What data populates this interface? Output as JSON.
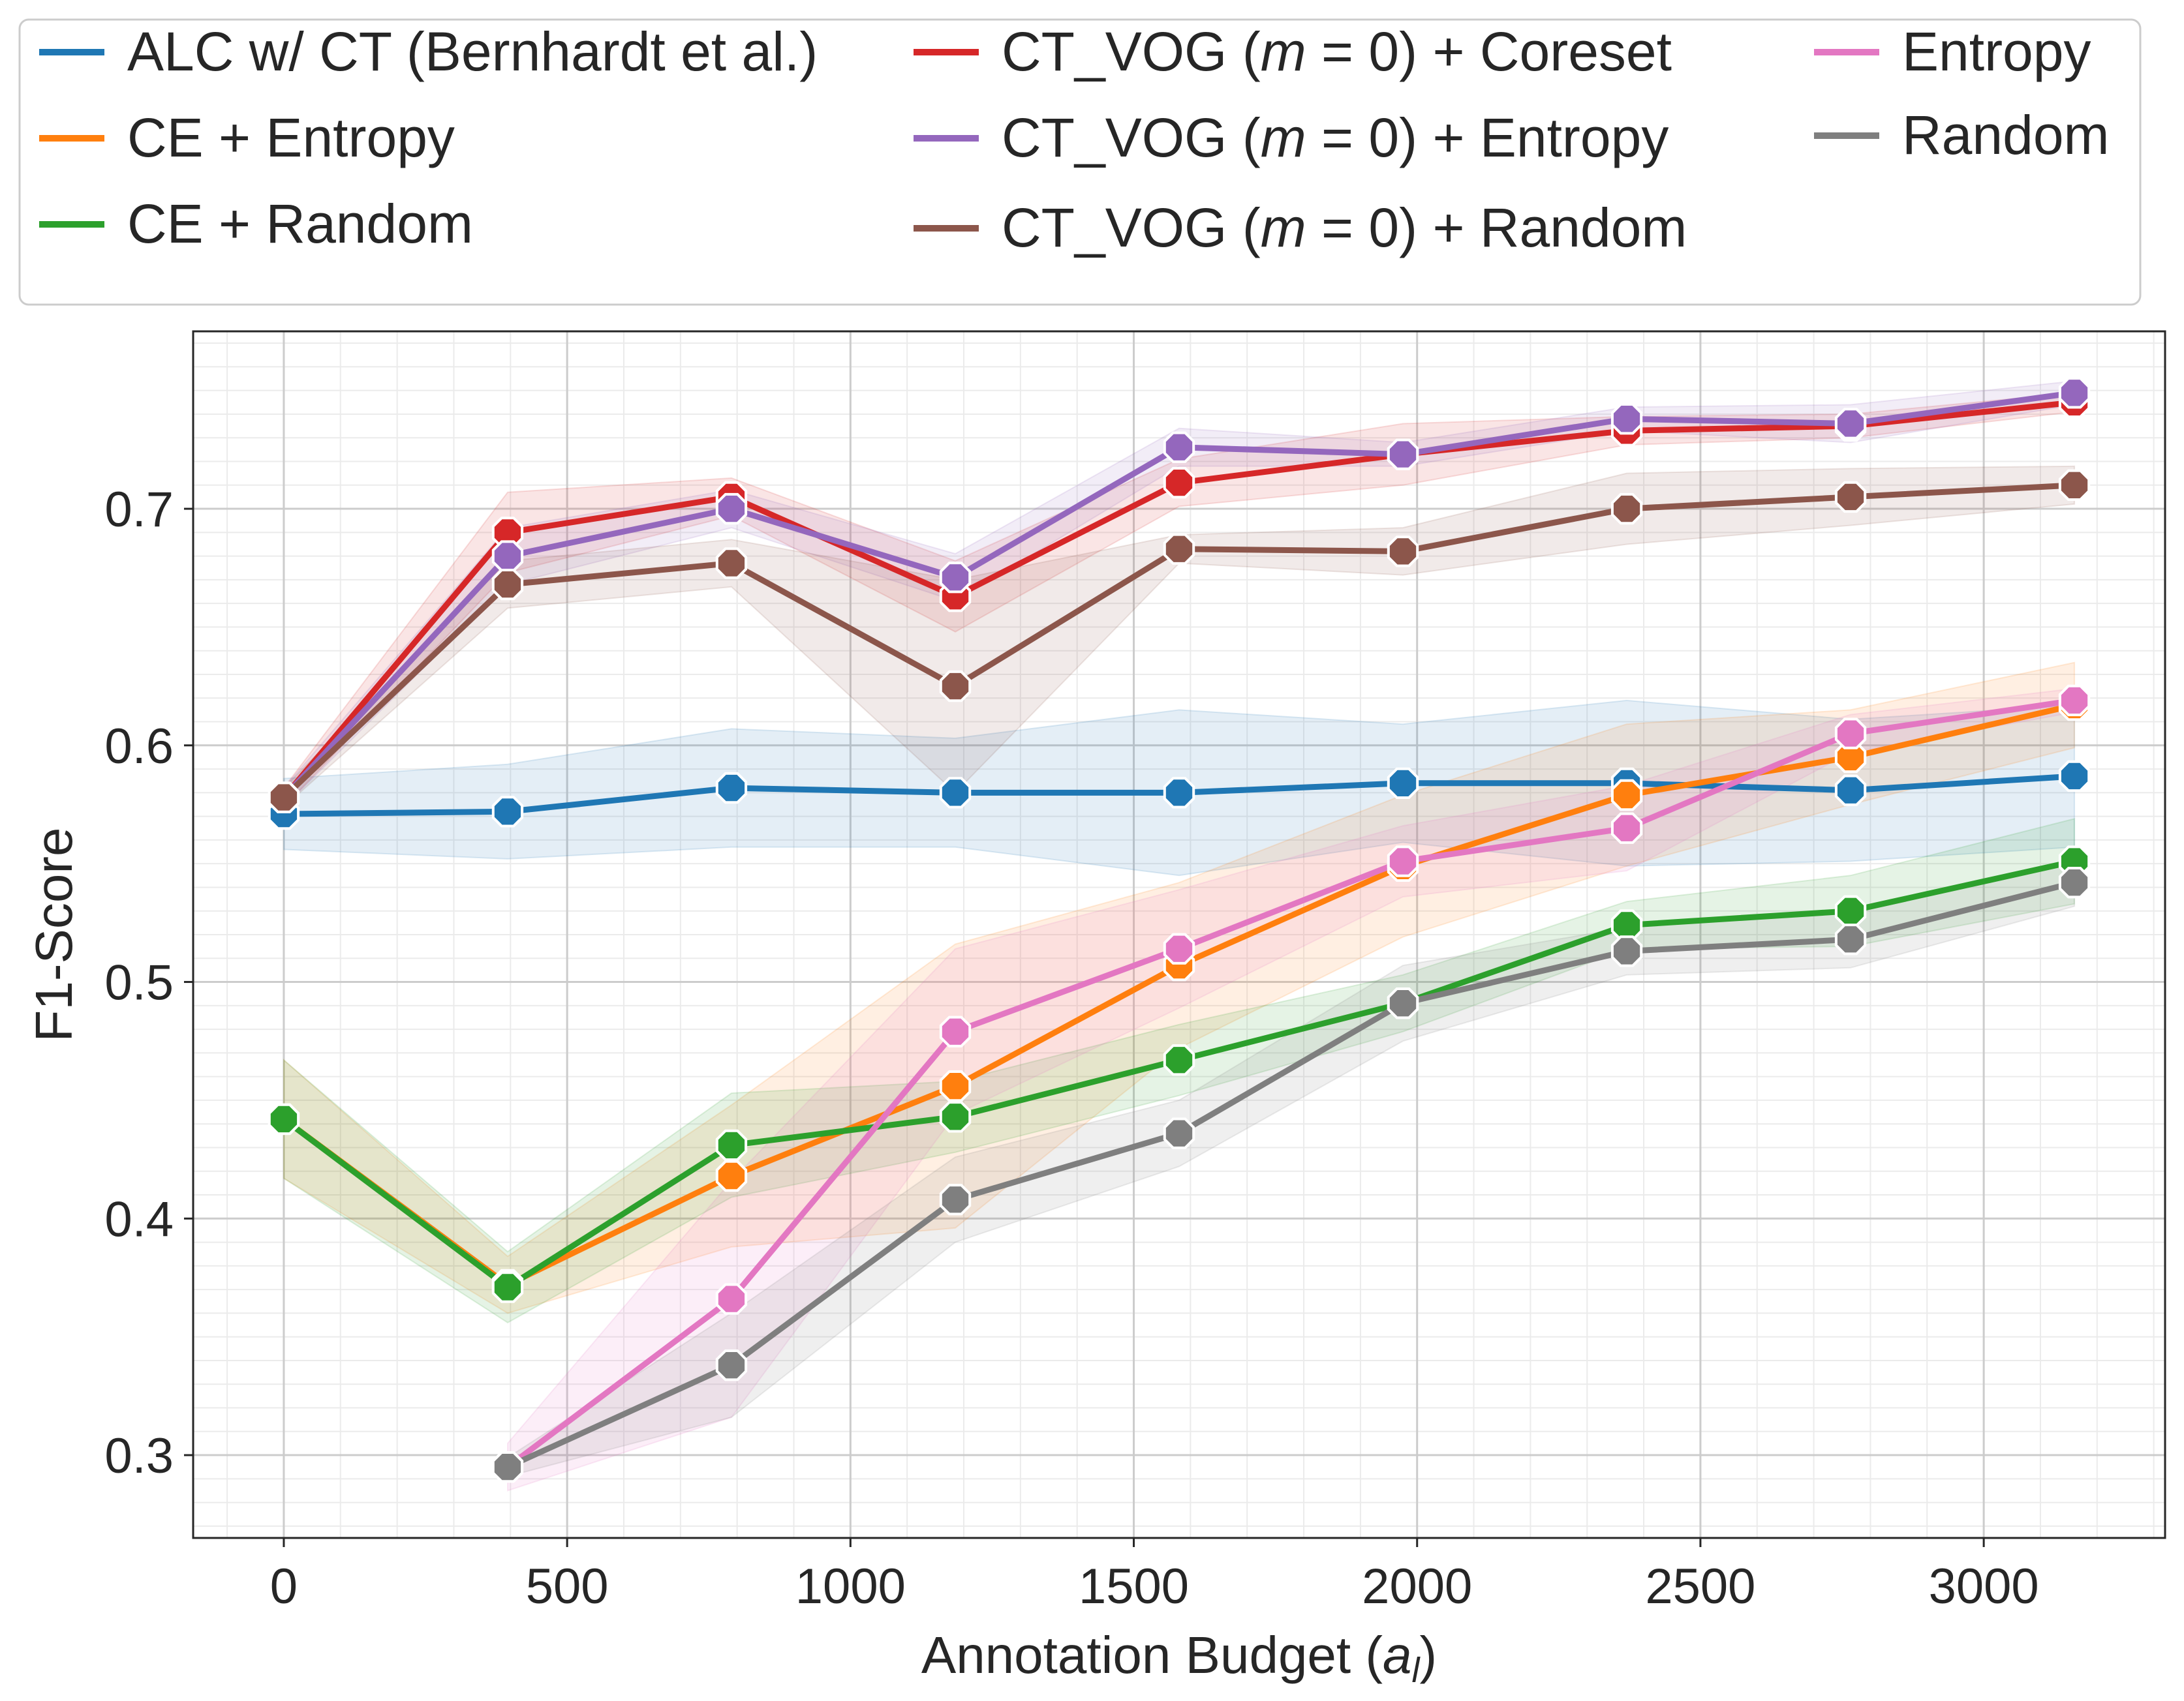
{
  "chart_data": {
    "type": "line",
    "title": "",
    "xlabel_text": "Annotation Budget (",
    "xlabel_var": "a",
    "xlabel_sub": "l",
    "xlabel_close": ")",
    "ylabel": "F1-Score",
    "xlim": [
      -160,
      3320
    ],
    "ylim": [
      0.265,
      0.775
    ],
    "xticks": [
      0,
      500,
      1000,
      1500,
      2000,
      2500,
      3000
    ],
    "yticks": [
      0.3,
      0.4,
      0.5,
      0.6,
      0.7
    ],
    "ytick_labels": [
      "0.3",
      "0.4",
      "0.5",
      "0.6",
      "0.7"
    ],
    "grid": true,
    "legend_placement": "top, outside the plot, 3 columns",
    "series": [
      {
        "name": "ALC w/ CT (Bernhardt et al.)",
        "color": "#1f77b4",
        "x": [
          0,
          395,
          790,
          1185,
          1580,
          1975,
          2370,
          2765,
          3160
        ],
        "y": [
          0.571,
          0.572,
          0.582,
          0.58,
          0.58,
          0.584,
          0.584,
          0.581,
          0.587
        ],
        "err": [
          0.015,
          0.02,
          0.025,
          0.023,
          0.035,
          0.025,
          0.035,
          0.03,
          0.03
        ]
      },
      {
        "name": "CE + Entropy",
        "color": "#ff7f0e",
        "x": [
          0,
          395,
          790,
          1185,
          1580,
          1975,
          2370,
          2765,
          3160
        ],
        "y": [
          0.442,
          0.372,
          0.418,
          0.456,
          0.507,
          0.549,
          0.579,
          0.595,
          0.617
        ],
        "err": [
          0.025,
          0.012,
          0.03,
          0.06,
          0.035,
          0.03,
          0.03,
          0.02,
          0.018
        ]
      },
      {
        "name": "CE + Random",
        "color": "#2ca02c",
        "x": [
          0,
          395,
          790,
          1185,
          1580,
          1975,
          2370,
          2765,
          3160
        ],
        "y": [
          0.442,
          0.371,
          0.431,
          0.443,
          0.467,
          0.491,
          0.524,
          0.53,
          0.551
        ],
        "err": [
          0.025,
          0.015,
          0.022,
          0.015,
          0.015,
          0.012,
          0.01,
          0.015,
          0.018
        ]
      },
      {
        "name": "CT_VOG (m = 0) + Coreset",
        "color": "#d62728",
        "label_pre": "CT_VOG (",
        "label_var": "m",
        "label_post": " = 0) + Coreset",
        "x": [
          0,
          395,
          790,
          1185,
          1580,
          1975,
          2370,
          2765,
          3160
        ],
        "y": [
          0.578,
          0.69,
          0.705,
          0.663,
          0.711,
          0.723,
          0.733,
          0.735,
          0.745
        ],
        "err": [
          0.004,
          0.017,
          0.008,
          0.015,
          0.01,
          0.013,
          0.006,
          0.005,
          0.004
        ]
      },
      {
        "name": "CT_VOG (m = 0) + Entropy",
        "color": "#9467bd",
        "label_pre": "CT_VOG (",
        "label_var": "m",
        "label_post": " = 0) + Entropy",
        "x": [
          0,
          395,
          790,
          1185,
          1580,
          1975,
          2370,
          2765,
          3160
        ],
        "y": [
          0.578,
          0.68,
          0.7,
          0.671,
          0.726,
          0.723,
          0.738,
          0.736,
          0.749
        ],
        "err": [
          0.004,
          0.012,
          0.008,
          0.01,
          0.008,
          0.005,
          0.005,
          0.008,
          0.005
        ]
      },
      {
        "name": "CT_VOG (m = 0) + Random",
        "color": "#8c564b",
        "label_pre": "CT_VOG (",
        "label_var": "m",
        "label_post": " = 0) + Random",
        "x": [
          0,
          395,
          790,
          1185,
          1580,
          1975,
          2370,
          2765,
          3160
        ],
        "y": [
          0.578,
          0.668,
          0.677,
          0.625,
          0.683,
          0.682,
          0.7,
          0.705,
          0.71
        ],
        "err": [
          0.004,
          0.01,
          0.01,
          0.045,
          0.006,
          0.01,
          0.015,
          0.012,
          0.008
        ]
      },
      {
        "name": "Entropy",
        "color": "#e377c2",
        "x": [
          395,
          790,
          1185,
          1580,
          1975,
          2370,
          2765,
          3160
        ],
        "y": [
          0.295,
          0.366,
          0.479,
          0.514,
          0.551,
          0.565,
          0.605,
          0.619
        ],
        "err": [
          0.01,
          0.05,
          0.035,
          0.025,
          0.015,
          0.018,
          0.008,
          0.005
        ]
      },
      {
        "name": "Random",
        "color": "#7f7f7f",
        "x": [
          395,
          790,
          1185,
          1580,
          1975,
          2370,
          2765,
          3160
        ],
        "y": [
          0.295,
          0.338,
          0.408,
          0.436,
          0.491,
          0.513,
          0.518,
          0.542
        ],
        "err": [
          0.004,
          0.022,
          0.018,
          0.014,
          0.016,
          0.01,
          0.012,
          0.01
        ]
      }
    ]
  }
}
